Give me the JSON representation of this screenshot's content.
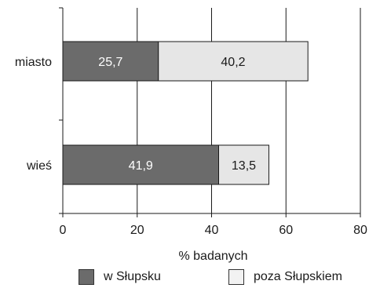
{
  "chart_data": {
    "type": "bar",
    "orientation": "horizontal",
    "stacked": true,
    "categories": [
      "miasto",
      "wieś"
    ],
    "series": [
      {
        "name": "w Słupsku",
        "values": [
          25.7,
          41.9
        ],
        "labels": [
          "25,7",
          "41,9"
        ],
        "color": "#6b6b6b",
        "label_color": "#ffffff"
      },
      {
        "name": "poza Słupskiem",
        "values": [
          40.2,
          13.5
        ],
        "labels": [
          "40,2",
          "13,5"
        ],
        "color": "#e6e6e6",
        "label_color": "#1a1a1a"
      }
    ],
    "xlabel": "% badanych",
    "xlim": [
      0,
      80
    ],
    "xticks": [
      "0",
      "20",
      "40",
      "60",
      "80"
    ],
    "grid": "vertical",
    "legend": "bottom"
  }
}
